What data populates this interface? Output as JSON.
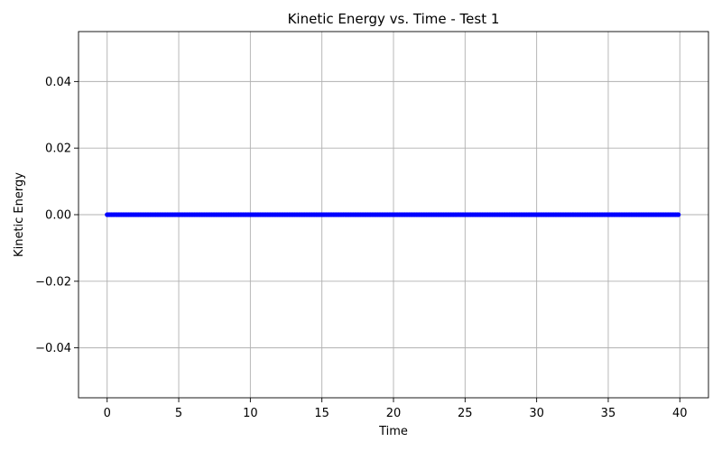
{
  "chart_data": {
    "type": "line",
    "title": "Kinetic Energy vs. Time - Test 1",
    "xlabel": "Time",
    "ylabel": "Kinetic Energy",
    "xlim": [
      -2,
      42
    ],
    "ylim": [
      -0.055,
      0.055
    ],
    "xticks": [
      0,
      5,
      10,
      15,
      20,
      25,
      30,
      35,
      40
    ],
    "xtick_labels": [
      "0",
      "5",
      "10",
      "15",
      "20",
      "25",
      "30",
      "35",
      "40"
    ],
    "yticks": [
      -0.04,
      -0.02,
      0.0,
      0.02,
      0.04
    ],
    "ytick_labels": [
      "−0.04",
      "−0.02",
      "0.00",
      "0.02",
      "0.04"
    ],
    "grid": true,
    "legend": false,
    "series": [
      {
        "color": "#0000ff",
        "marker": "circle",
        "x_start": 0,
        "x_end": 39.9,
        "x_step": 0.1,
        "y_constant": 0.0
      }
    ]
  }
}
